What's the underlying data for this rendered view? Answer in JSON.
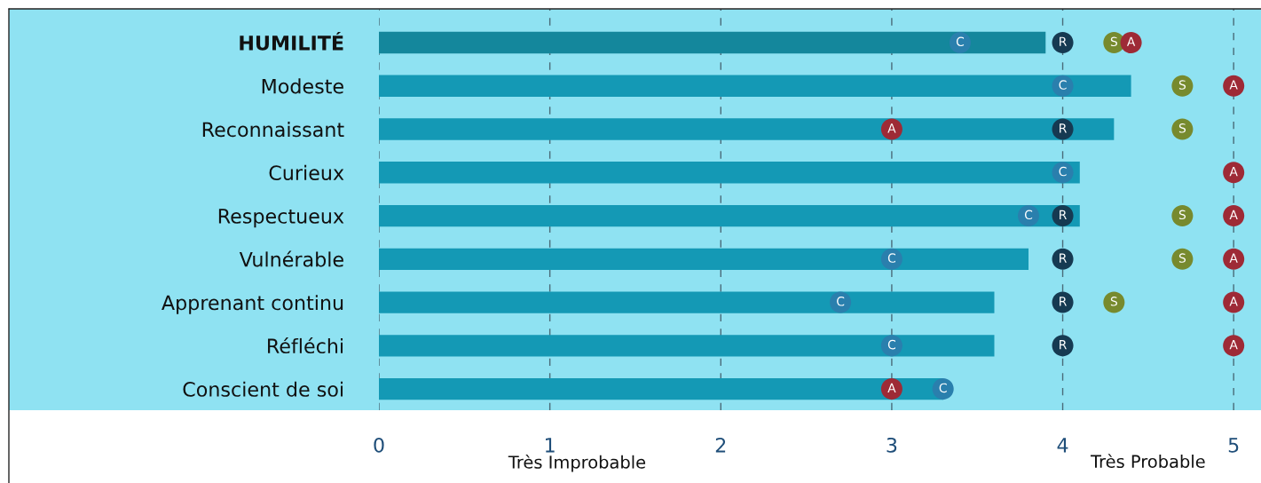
{
  "chart_data": {
    "type": "bar",
    "orientation": "horizontal",
    "categories": [
      "HUMILITÉ",
      "Modeste",
      "Reconnaissant",
      "Curieux",
      "Respectueux",
      "Vulnérable",
      "Apprenant continu",
      "Réfléchi",
      "Conscient de soi"
    ],
    "values": [
      3.9,
      4.4,
      4.3,
      4.1,
      4.1,
      3.8,
      3.6,
      3.6,
      3.3
    ],
    "colors": [
      "#14879c",
      "#1499b5",
      "#1499b5",
      "#1499b5",
      "#1499b5",
      "#1499b5",
      "#1499b5",
      "#1499b5",
      "#1499b5"
    ],
    "series": [
      {
        "type": "scatter",
        "name": "S",
        "color": "#778a2e",
        "values": [
          4.3,
          4.7,
          4.7,
          null,
          4.7,
          4.7,
          4.3,
          null,
          null
        ]
      },
      {
        "type": "scatter",
        "name": "C",
        "color": "#2a7fad",
        "values": [
          3.4,
          4,
          null,
          4,
          3.8,
          3,
          2.7,
          3,
          3.3
        ]
      },
      {
        "type": "scatter",
        "name": "R",
        "color": "#163a52",
        "values": [
          4,
          null,
          4,
          null,
          4,
          4,
          4,
          4,
          null
        ]
      },
      {
        "type": "scatter",
        "name": "A",
        "color": "#9e2a36",
        "values": [
          4.4,
          5,
          3,
          5,
          5,
          5,
          5,
          5,
          3
        ]
      }
    ],
    "marker": "circle",
    "xlim": [
      0,
      5.16
    ],
    "xticks": [
      0,
      1,
      2,
      3,
      4,
      5
    ],
    "grid": "x",
    "annotations": [
      "Très Improbable",
      "Très Probable"
    ]
  }
}
